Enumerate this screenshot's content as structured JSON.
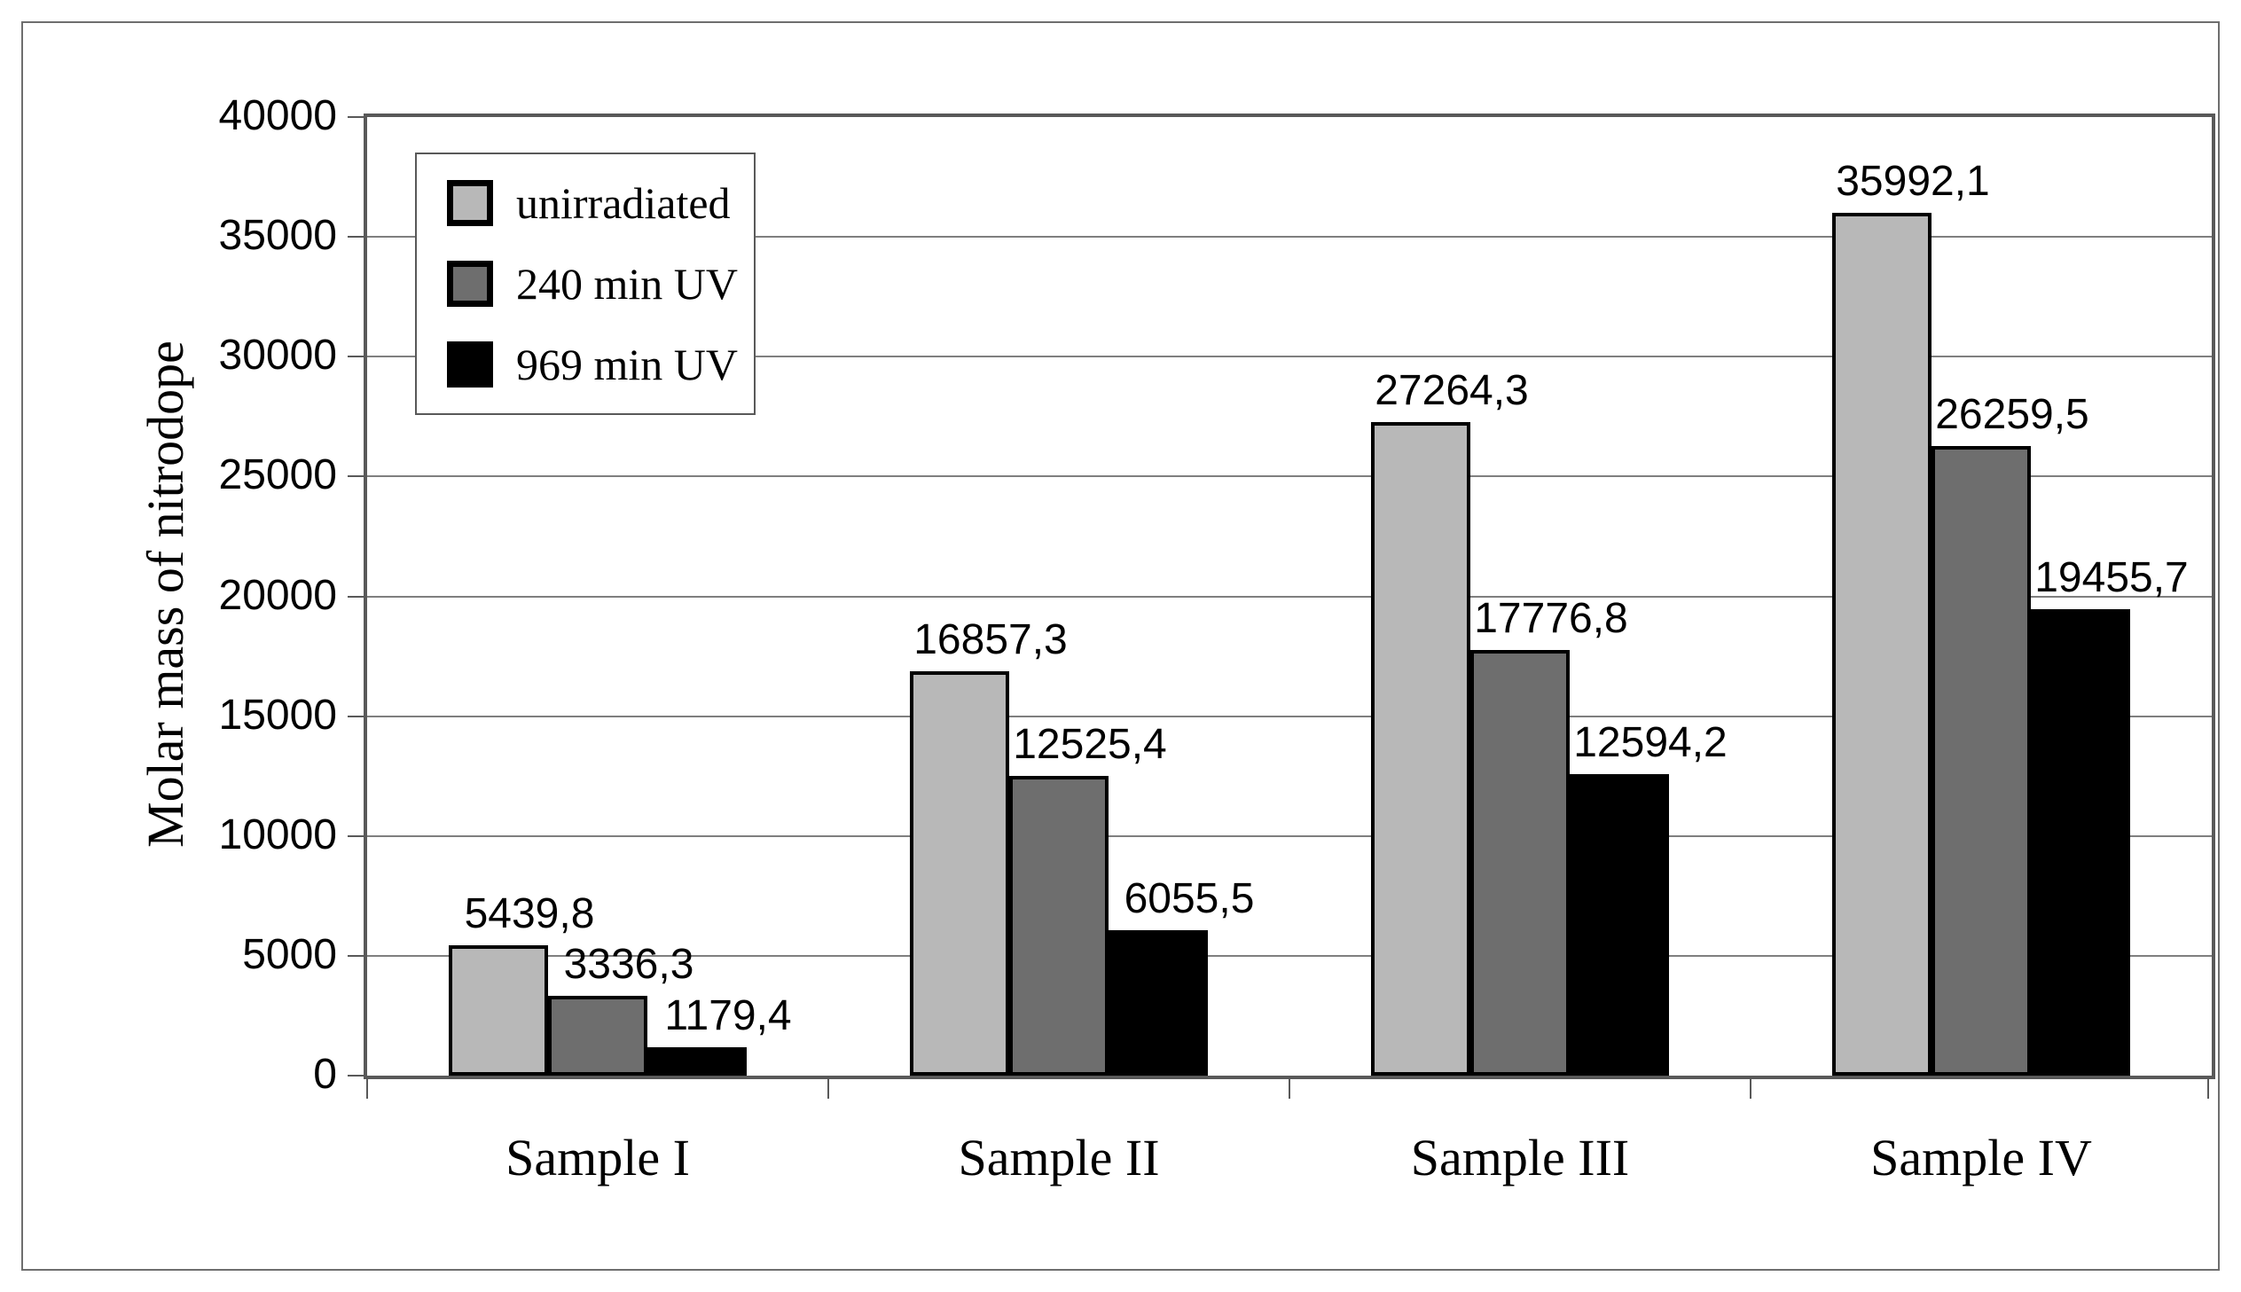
{
  "figure": {
    "background": "#ffffff",
    "frame_color": "#6e6e6e",
    "axis_color": "#595959",
    "gridline_color": "#7f7f7f"
  },
  "chart_data": {
    "type": "bar",
    "title": "",
    "xlabel": "",
    "ylabel": "Molar mass of nitrodope",
    "categories": [
      "Sample I",
      "Sample II",
      "Sample III",
      "Sample IV"
    ],
    "series": [
      {
        "name": "unirradiated",
        "color": "#b8b8b8",
        "values": [
          5439.8,
          16857.3,
          27264.3,
          35992.1
        ],
        "labels": [
          "5439,8",
          "16857,3",
          "27264,3",
          "35992,1"
        ]
      },
      {
        "name": "240 min UV",
        "color": "#6e6e6e",
        "values": [
          3336.3,
          12525.4,
          17776.8,
          26259.5
        ],
        "labels": [
          "3336,3",
          "12525,4",
          "17776,8",
          "26259,5"
        ]
      },
      {
        "name": "969 min UV",
        "color": "#000000",
        "values": [
          1179.4,
          6055.5,
          12594.2,
          19455.7
        ],
        "labels": [
          "1179,4",
          "6055,5",
          "12594,2",
          "19455,7"
        ]
      }
    ],
    "ylim": [
      0,
      40000
    ],
    "ytick_step": 5000,
    "ytick_labels": [
      "0",
      "5000",
      "10000",
      "15000",
      "20000",
      "25000",
      "30000",
      "35000",
      "40000"
    ],
    "grid": true,
    "legend_position": "top-left",
    "decimal_separator": ","
  }
}
